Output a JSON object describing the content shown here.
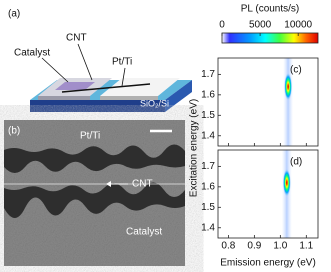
{
  "panel_a": {
    "label": "(a)",
    "cnt": "CNT",
    "catalyst": "Catalyst",
    "electrode": "Pt/Ti",
    "substrate": "SiO₂/Si"
  },
  "panel_b": {
    "label": "(b)",
    "electrode": "Pt/Ti",
    "cnt": "CNT",
    "catalyst": "Catalyst"
  },
  "colorbar": {
    "title": "PL (counts/s)",
    "lim": [
      0,
      12600
    ],
    "ticks": [
      0,
      5000,
      10000
    ]
  },
  "spectra": {
    "xlabel": "Emission energy (eV)",
    "ylabel": "Excitation energy (eV)",
    "xlim": [
      0.76,
      1.145
    ],
    "ylim": [
      1.35,
      1.78
    ],
    "xticks": [
      0.8,
      0.9,
      {
        "value": 1.0,
        "label": "1.0"
      },
      1.1
    ],
    "yticks": [
      1.4,
      1.5,
      1.6,
      1.7
    ],
    "panels": [
      {
        "label": "(c)",
        "peak": [
          1.03,
          1.64
        ]
      },
      {
        "label": "(d)",
        "peak": [
          1.025,
          1.62
        ]
      }
    ]
  }
}
